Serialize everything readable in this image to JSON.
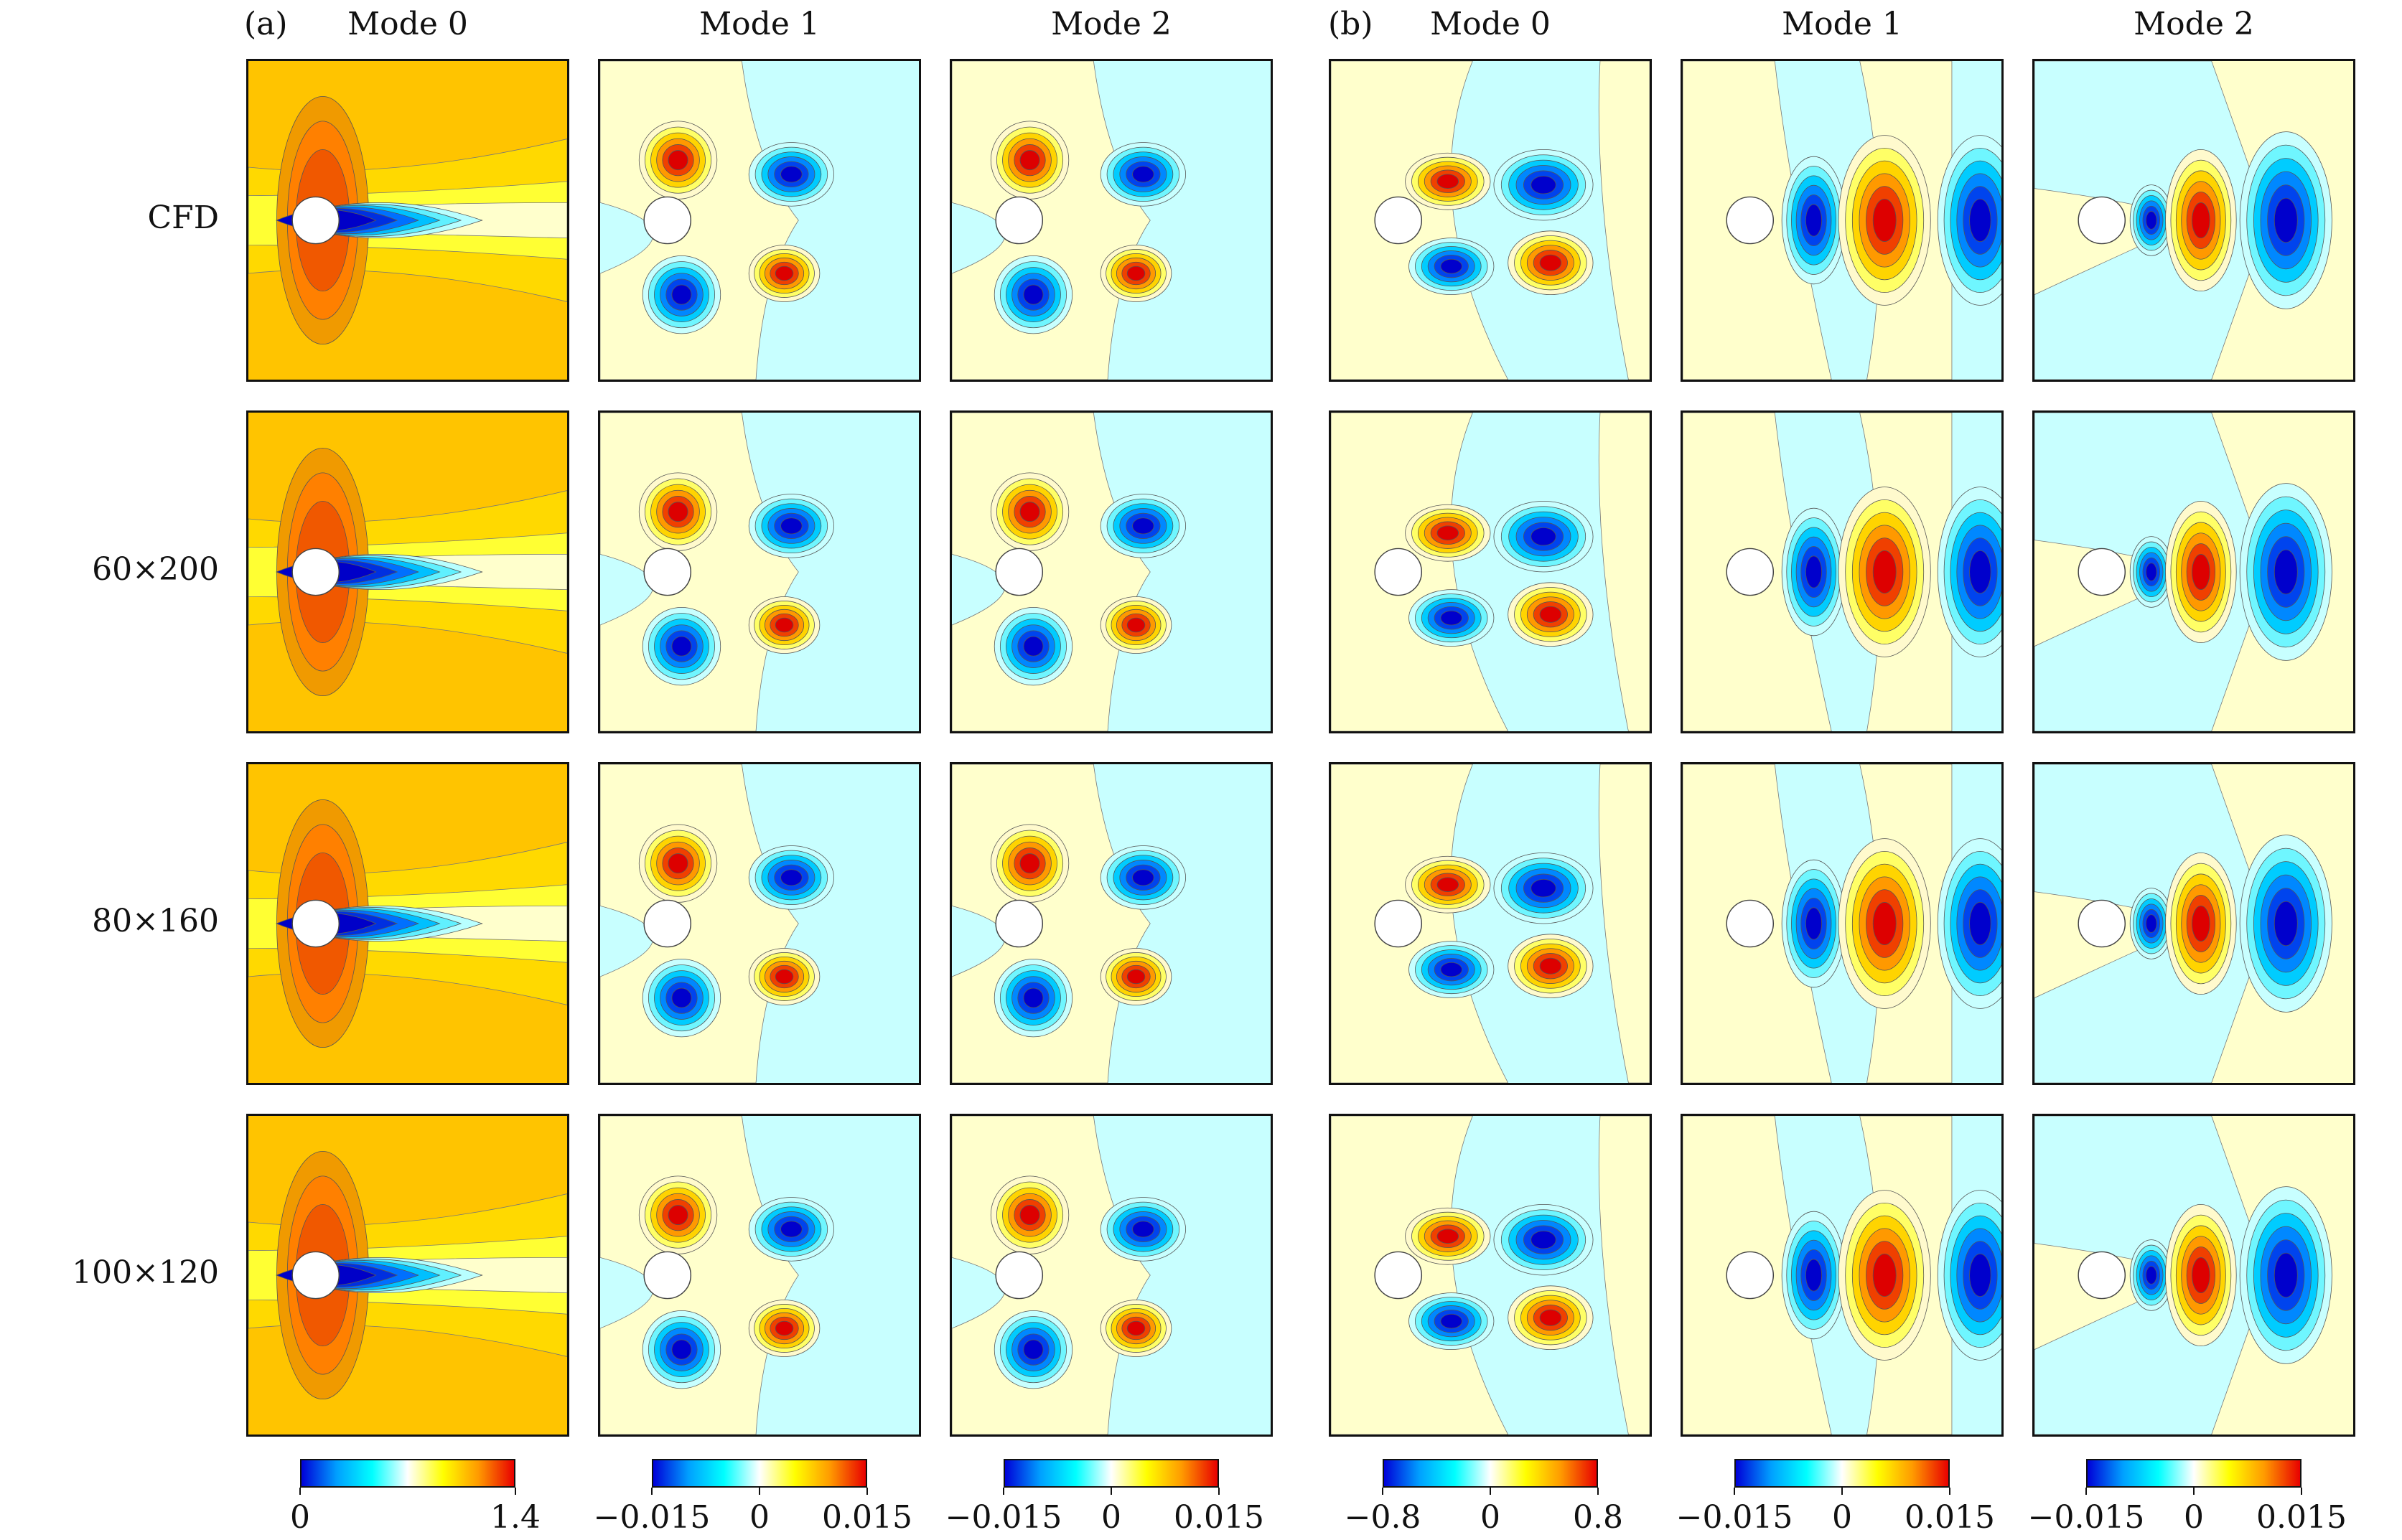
{
  "figure": {
    "groups": [
      {
        "letter": "(a)",
        "columns": [
          "Mode 0",
          "Mode 1",
          "Mode 2"
        ]
      },
      {
        "letter": "(b)",
        "columns": [
          "Mode 0",
          "Mode 1",
          "Mode 2"
        ]
      }
    ],
    "rows": [
      "CFD",
      "60×200",
      "80×160",
      "100×120"
    ],
    "colorbars": [
      {
        "ticks": [
          "0",
          "1.4"
        ],
        "positions": [
          0,
          1
        ]
      },
      {
        "ticks": [
          "−0.015",
          "0",
          "0.015"
        ],
        "positions": [
          0,
          0.5,
          1
        ]
      },
      {
        "ticks": [
          "−0.015",
          "0",
          "0.015"
        ],
        "positions": [
          0,
          0.5,
          1
        ]
      },
      {
        "ticks": [
          "−0.8",
          "0",
          "0.8"
        ],
        "positions": [
          0,
          0.5,
          1
        ]
      },
      {
        "ticks": [
          "−0.015",
          "0",
          "0.015"
        ],
        "positions": [
          0,
          0.5,
          1
        ]
      },
      {
        "ticks": [
          "−0.015",
          "0",
          "0.015"
        ],
        "positions": [
          0,
          0.5,
          1
        ]
      }
    ],
    "colormap": [
      "#0000d8",
      "#00a0ff",
      "#00ffff",
      "#ffffff",
      "#ffff00",
      "#ff9900",
      "#e80000"
    ]
  }
}
